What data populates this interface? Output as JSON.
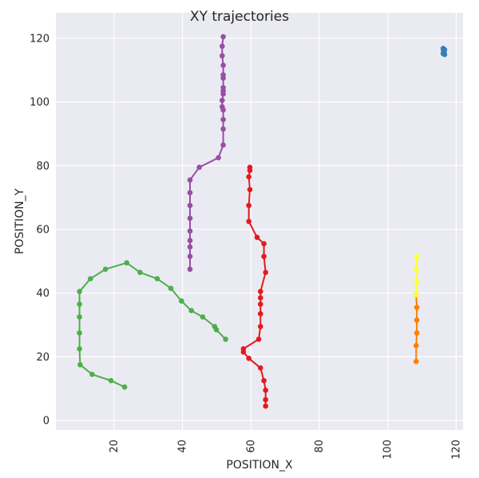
{
  "chart_data": {
    "type": "line",
    "title": "XY trajectories",
    "xlabel": "POSITION_X",
    "ylabel": "POSITION_Y",
    "xlim": [
      3,
      122
    ],
    "ylim": [
      -3,
      128
    ],
    "xticks": [
      20,
      40,
      60,
      80,
      100,
      120
    ],
    "yticks": [
      0,
      20,
      40,
      60,
      80,
      100,
      120
    ],
    "grid": true,
    "background": "#eaeaf2",
    "series": [
      {
        "color": "#984ea3",
        "points": [
          [
            51.9,
            120.5
          ],
          [
            51.6,
            117.5
          ],
          [
            51.6,
            114.5
          ],
          [
            51.9,
            111.5
          ],
          [
            51.9,
            108.5
          ],
          [
            51.9,
            107.5
          ],
          [
            51.9,
            104.5
          ],
          [
            51.9,
            103.5
          ],
          [
            51.9,
            102.5
          ],
          [
            51.6,
            100.5
          ],
          [
            51.6,
            98.5
          ],
          [
            51.9,
            97.5
          ],
          [
            51.9,
            94.5
          ],
          [
            51.9,
            91.5
          ],
          [
            51.9,
            86.5
          ],
          [
            50.5,
            82.5
          ],
          [
            44.9,
            79.5
          ],
          [
            42.2,
            75.5
          ],
          [
            42.2,
            71.5
          ],
          [
            42.2,
            67.5
          ],
          [
            42.2,
            63.5
          ],
          [
            42.2,
            59.5
          ],
          [
            42.2,
            56.5
          ],
          [
            42.2,
            54.5
          ],
          [
            42.2,
            51.5
          ],
          [
            42.2,
            47.5
          ]
        ]
      },
      {
        "color": "#e41a1c",
        "points": [
          [
            59.7,
            79.5
          ],
          [
            59.7,
            78.5
          ],
          [
            59.4,
            76.5
          ],
          [
            59.7,
            72.5
          ],
          [
            59.4,
            67.5
          ],
          [
            59.4,
            62.5
          ],
          [
            61.8,
            57.5
          ],
          [
            63.8,
            55.5
          ],
          [
            63.8,
            51.5
          ],
          [
            64.3,
            46.5
          ],
          [
            62.8,
            40.5
          ],
          [
            62.8,
            38.5
          ],
          [
            62.8,
            36.5
          ],
          [
            62.8,
            33.5
          ],
          [
            62.8,
            29.5
          ],
          [
            62.3,
            25.5
          ],
          [
            57.8,
            22.5
          ],
          [
            57.8,
            21.5
          ],
          [
            59.4,
            19.5
          ],
          [
            62.8,
            16.5
          ],
          [
            63.8,
            12.5
          ],
          [
            64.3,
            9.5
          ],
          [
            64.3,
            6.5
          ],
          [
            64.3,
            4.5
          ]
        ]
      },
      {
        "color": "#4daf4a",
        "points": [
          [
            23.1,
            10.5
          ],
          [
            19.1,
            12.5
          ],
          [
            13.6,
            14.5
          ],
          [
            10.1,
            17.5
          ],
          [
            9.9,
            22.5
          ],
          [
            9.9,
            27.5
          ],
          [
            9.9,
            32.5
          ],
          [
            9.9,
            36.5
          ],
          [
            9.9,
            40.5
          ],
          [
            13.1,
            44.5
          ],
          [
            17.5,
            47.5
          ],
          [
            23.7,
            49.5
          ],
          [
            27.6,
            46.5
          ],
          [
            32.6,
            44.5
          ],
          [
            36.6,
            41.5
          ],
          [
            39.7,
            37.5
          ],
          [
            42.6,
            34.5
          ],
          [
            45.9,
            32.5
          ],
          [
            49.4,
            29.5
          ],
          [
            49.9,
            28.5
          ],
          [
            52.6,
            25.5
          ]
        ]
      },
      {
        "color": "#ff7f00",
        "points": [
          [
            108.3,
            18.5
          ],
          [
            108.3,
            23.5
          ],
          [
            108.5,
            27.5
          ],
          [
            108.5,
            31.5
          ],
          [
            108.5,
            35.5
          ],
          [
            108.3,
            39.5
          ]
        ]
      },
      {
        "color": "#ffff33",
        "points": [
          [
            108.3,
            39.5
          ],
          [
            108.5,
            43.5
          ],
          [
            108.3,
            47.5
          ],
          [
            108.5,
            51.5
          ]
        ]
      },
      {
        "color": "#377eb8",
        "points": [
          [
            116.2,
            116.8
          ],
          [
            116.6,
            116.4
          ],
          [
            116.3,
            116.0
          ],
          [
            116.5,
            115.6
          ],
          [
            116.2,
            115.2
          ],
          [
            116.6,
            114.9
          ],
          [
            116.4,
            116.2
          ],
          [
            116.3,
            115.4
          ]
        ]
      }
    ]
  }
}
